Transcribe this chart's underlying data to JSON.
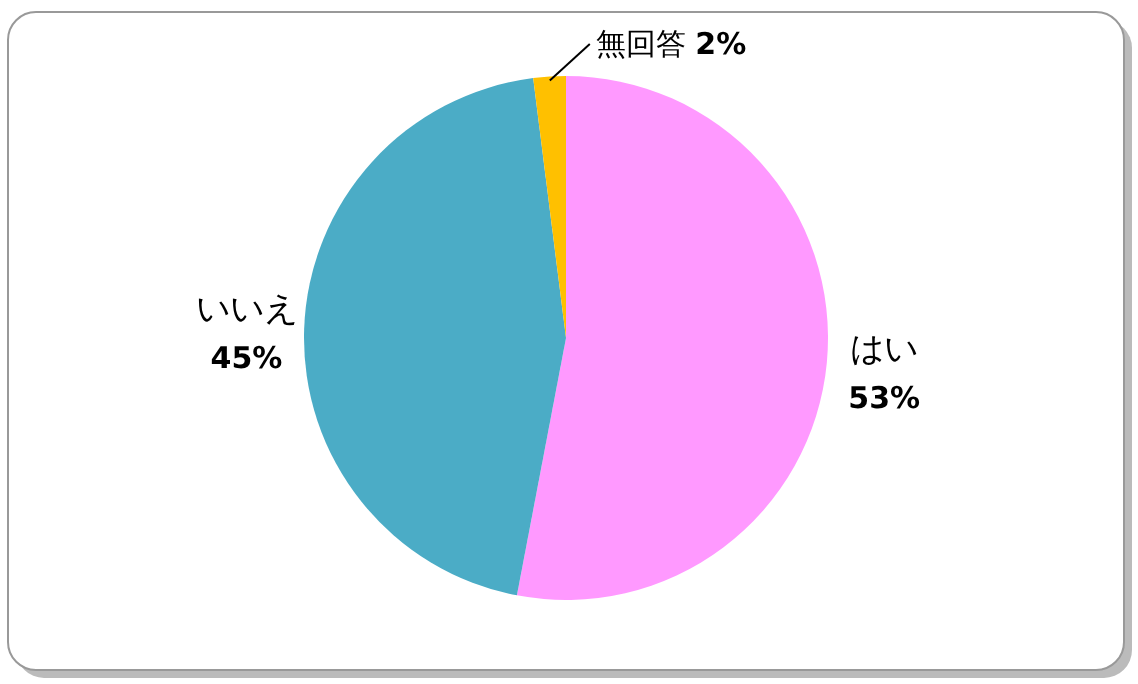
{
  "chart_data": {
    "type": "pie",
    "categories": [
      "はい",
      "いいえ",
      "無回答"
    ],
    "values": [
      53,
      45,
      2
    ],
    "colors": [
      "#ff99ff",
      "#4bacc6",
      "#ffc000"
    ],
    "value_labels": [
      "53%",
      "45%",
      "2%"
    ],
    "legend": false
  }
}
